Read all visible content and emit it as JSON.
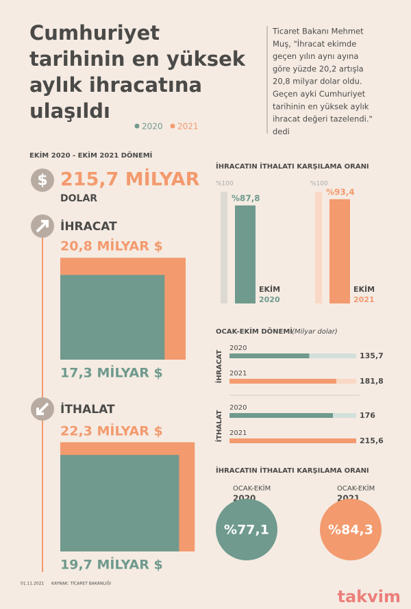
{
  "title": [
    "Cumhuriyet",
    "tarihinin en yüksek",
    "aylık ihracatına",
    "ulaşıldı"
  ],
  "legend": [
    "2020",
    "2021"
  ],
  "quote": [
    "Ticaret Bakanı Mehmet",
    "Muş, \"İhracat ekimde",
    "geçen yılın aynı ayına",
    "göre yüzde 20,2 artışla",
    "20,8 milyar dolar oldu.",
    "Geçen ayki Cumhuriyet",
    "tarihinin en yüksek aylık",
    "ihracat değeri tazelendi.\"",
    "dedi"
  ],
  "period": "EKİM 2020 - EKİM 2021 DÖNEMİ",
  "total": {
    "icon": "$",
    "amount": "215,7 MİLYAR",
    "unit": "DOLAR"
  },
  "exports": {
    "label": "İHRACAT",
    "v2021": {
      "value": 20.8,
      "label": "20,8 MİLYAR $"
    },
    "v2020": {
      "value": 17.3,
      "label": "17,3 MİLYAR $"
    }
  },
  "imports": {
    "label": "İTHALAT",
    "v2021": {
      "value": 22.3,
      "label": "22,3 MİLYAR $"
    },
    "v2020": {
      "value": 19.7,
      "label": "19,7 MİLYAR $"
    }
  },
  "coverage_title": "İHRACATIN İTHALATI KARŞILAMA ORANI",
  "coverage_bars": [
    {
      "max": {
        "value": 100,
        "label": "%100"
      },
      "bar": {
        "value": 87.8,
        "label": "%87,8"
      },
      "month": "EKİM",
      "year": "2020"
    },
    {
      "max": {
        "value": 100,
        "label": "%100"
      },
      "bar": {
        "value": 93.4,
        "label": "%93,4"
      },
      "month": "EKİM",
      "year": "2021"
    }
  ],
  "annual_title": "OCAK-EKİM DÖNEMİ",
  "annual_unit": "(Milyar dolar)",
  "annual": [
    {
      "group": "İHRACAT",
      "rows": [
        {
          "year": "2020",
          "value": {
            "value": 135.7,
            "label": "135,7"
          }
        },
        {
          "year": "2021",
          "value": {
            "value": 181.8,
            "label": "181,8"
          }
        }
      ]
    },
    {
      "group": "İTHALAT",
      "rows": [
        {
          "year": "2020",
          "value": {
            "value": 176,
            "label": "176"
          }
        },
        {
          "year": "2021",
          "value": {
            "value": 215.6,
            "label": "215,6"
          }
        }
      ]
    }
  ],
  "coverage2_title": "İHRACATIN İTHALATI KARŞILAMA ORANI",
  "coverage2": [
    {
      "period": "OCAK-EKİM",
      "year": "2020",
      "value": "%77,1"
    },
    {
      "period": "OCAK-EKİM",
      "year": "2021",
      "value": "%84,3"
    }
  ],
  "footer": {
    "date": "01.11.2021",
    "source": "KAYNAK: TİCARET BAKANLIĞI"
  },
  "watermark": "takvim"
}
